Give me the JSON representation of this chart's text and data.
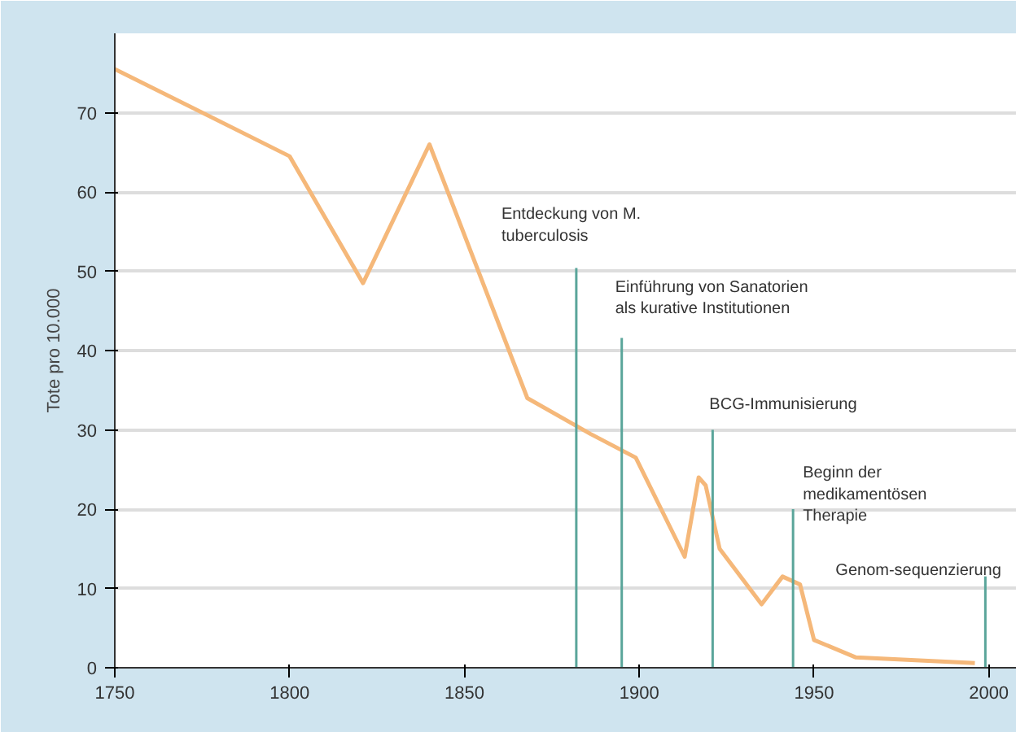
{
  "chart_data": {
    "type": "line",
    "ylabel": "Tote pro 10.000",
    "x": [
      1750,
      1800,
      1821,
      1840,
      1868,
      1886,
      1899,
      1913,
      1917,
      1919,
      1923,
      1935,
      1941,
      1946,
      1950,
      1962,
      1996
    ],
    "series": [
      {
        "color": "#f5b87a",
        "values": [
          75.5,
          64.5,
          48.5,
          66,
          34,
          29.5,
          26.5,
          14,
          24,
          23,
          15,
          8,
          11.5,
          10.5,
          3.5,
          1.3,
          0.6
        ]
      }
    ],
    "xlim": [
      1750,
      2008
    ],
    "ylim": [
      0,
      80
    ],
    "xticks": [
      1750,
      1800,
      1850,
      1900,
      1950,
      2000
    ],
    "yticks": [
      0,
      10,
      20,
      30,
      40,
      50,
      60,
      70
    ],
    "grid": "y",
    "marker": "none",
    "line_style": "solid",
    "ref_lines": [
      {
        "axis": "x",
        "value": 1882,
        "label": "Entdeckung von M. tuberculosis",
        "color": "#5aa59a"
      },
      {
        "axis": "x",
        "value": 1895,
        "label": "Einführung von Sanatorien als kurative Institutionen",
        "color": "#5aa59a"
      },
      {
        "axis": "x",
        "value": 1921,
        "label": "BCG-Immunisierung",
        "color": "#5aa59a"
      },
      {
        "axis": "x",
        "value": 1944,
        "label": "Beginn der medikamentösen Therapie",
        "color": "#5aa59a"
      },
      {
        "axis": "x",
        "value": 1999,
        "label": "Genom-sequenzierung",
        "color": "#5aa59a"
      }
    ]
  }
}
